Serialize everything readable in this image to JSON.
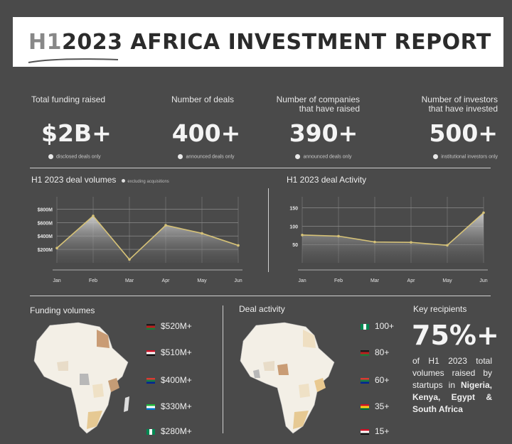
{
  "header": {
    "title_prefix": "H1",
    "title_rest": "2023 AFRICA INVESTMENT REPORT"
  },
  "stats": [
    {
      "label": "Total funding raised",
      "value": "$2B+",
      "note": "disclosed deals only"
    },
    {
      "label": "Number of deals",
      "value": "400+",
      "note": "announced deals only"
    },
    {
      "label": "Number of companies that have raised",
      "value": "390+",
      "note": "announced deals only"
    },
    {
      "label": "Number of investors that have invested",
      "value": "500+",
      "note": "institutional investors only"
    }
  ],
  "chart_data": [
    {
      "type": "area",
      "title": "H1 2023  deal volumes",
      "note": "excluding acquisitions",
      "categories": [
        "Jan",
        "Feb",
        "Mar",
        "Apr",
        "May",
        "Jun"
      ],
      "values": [
        220,
        700,
        50,
        560,
        440,
        260
      ],
      "yticks": [
        "$200M",
        "$400M",
        "$600M",
        "$800M"
      ],
      "ylim": [
        0,
        900
      ],
      "grid": true,
      "line_color": "#d6c277"
    },
    {
      "type": "area",
      "title": "H1 2023  deal Activity",
      "categories": [
        "Jan",
        "Feb",
        "Mar",
        "Apr",
        "May",
        "Jun"
      ],
      "values": [
        76,
        73,
        57,
        56,
        48,
        137
      ],
      "yticks": [
        "50",
        "100",
        "150"
      ],
      "ylim": [
        0,
        165
      ],
      "grid": true,
      "line_color": "#d6c277"
    }
  ],
  "funding": {
    "title": "Funding volumes",
    "items": [
      {
        "value": "$520M+",
        "flag": "kenya-flag"
      },
      {
        "value": "$510M+",
        "flag": "egypt-flag"
      },
      {
        "value": "$400M+",
        "flag": "south-africa-flag"
      },
      {
        "value": "$330M+",
        "flag": "sierra-leone-flag"
      },
      {
        "value": "$280M+",
        "flag": "nigeria-flag"
      }
    ]
  },
  "activity": {
    "title": "Deal activity",
    "items": [
      {
        "value": "100+",
        "flag": "nigeria-flag"
      },
      {
        "value": "80+",
        "flag": "kenya-flag"
      },
      {
        "value": "60+",
        "flag": "south-africa-flag"
      },
      {
        "value": "35+",
        "flag": "ghana-flag"
      },
      {
        "value": "15+",
        "flag": "egypt-flag"
      }
    ]
  },
  "recipients": {
    "title": "Key recipients",
    "value": "75%+",
    "text": "of H1 2023 total volumes raised by startups in",
    "bold": "Nigeria, Kenya, Egypt & South Africa"
  }
}
